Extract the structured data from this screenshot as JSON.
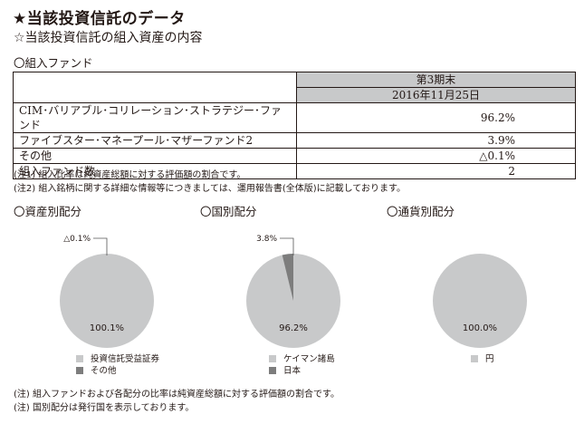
{
  "title": "★当該投資信託のデータ",
  "subtitle": "☆当該投資信託の組入資産の内容",
  "funds_heading": "〇組入ファンド",
  "table": {
    "period_label": "第3期末",
    "date_label": "2016年11月25日",
    "rows": [
      {
        "name": "CIM･バリアブル･コリレーション･ストラテジー･ファンド",
        "value": "96.2%"
      },
      {
        "name": "ファイブスター･マネープール･マザーファンド2",
        "value": "3.9%"
      },
      {
        "name": "その他",
        "value": "△0.1%"
      },
      {
        "name": "組入ファンド数",
        "value": "2"
      }
    ]
  },
  "notes_top": [
    "(注1) 組入比率は純資産総額に対する評価額の割合です。",
    "(注2) 組入銘柄に関する詳細な情報等につきましては、運用報告書(全体版)に記載しております。"
  ],
  "colors": {
    "main": "#c8c9ca",
    "accent": "#7d7d7d",
    "header_bg": "#c8c9ca",
    "text": "#231815"
  },
  "chart_data": [
    {
      "type": "pie",
      "title": "〇資産別配分",
      "slices": [
        {
          "label": "投資信託受益証券",
          "value": 100.1,
          "display": "100.1%"
        },
        {
          "label": "その他",
          "value": -0.1,
          "display": "△0.1%"
        }
      ]
    },
    {
      "type": "pie",
      "title": "〇国別配分",
      "slices": [
        {
          "label": "ケイマン諸島",
          "value": 96.2,
          "display": "96.2%"
        },
        {
          "label": "日本",
          "value": 3.8,
          "display": "3.8%"
        }
      ]
    },
    {
      "type": "pie",
      "title": "〇通貨別配分",
      "slices": [
        {
          "label": "円",
          "value": 100.0,
          "display": "100.0%"
        }
      ]
    }
  ],
  "notes_bottom": [
    "(注) 組入ファンドおよび各配分の比率は純資産総額に対する評価額の割合です。",
    "(注) 国別配分は発行国を表示しております。"
  ]
}
